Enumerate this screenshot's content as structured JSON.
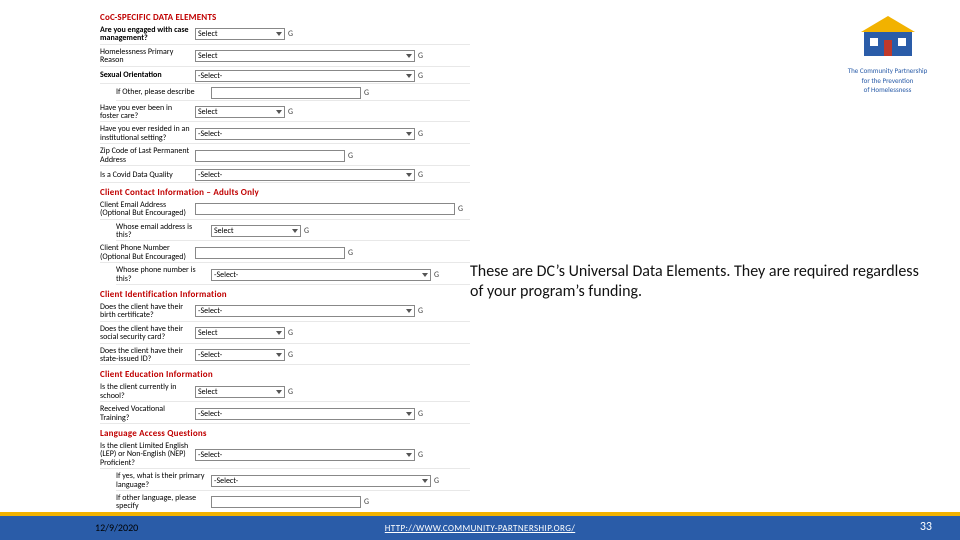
{
  "sections": {
    "coc": {
      "title": "CoC-SPECIFIC DATA ELEMENTS",
      "rows": [
        {
          "label": "Are you engaged with case management?",
          "bold": true,
          "type": "select-short",
          "value": "Select",
          "g": "G"
        },
        {
          "label": "Homelessness Primary Reason",
          "bold": false,
          "type": "select-long",
          "value": "Select",
          "g": "G"
        },
        {
          "label": "Sexual Orientation",
          "bold": true,
          "type": "select-long",
          "value": "-Select-",
          "g": "G"
        },
        {
          "label": "If Other, please describe",
          "bold": false,
          "indent": true,
          "type": "input",
          "g": "G"
        },
        {
          "label": "Have you ever been in foster care?",
          "bold": false,
          "type": "select-short",
          "value": "Select",
          "g": "G"
        },
        {
          "label": "Have you ever resided in an institutional setting?",
          "bold": false,
          "type": "select-long",
          "value": "-Select-",
          "g": "G"
        },
        {
          "label": "Zip Code of Last Permanent Address",
          "bold": false,
          "type": "input-short",
          "g": "G"
        },
        {
          "label": "Is a Covid Data Quality",
          "bold": false,
          "type": "select-long",
          "value": "-Select-",
          "g": "G"
        }
      ]
    },
    "contact": {
      "title": "Client Contact Information – Adults Only",
      "rows": [
        {
          "label": "Client Email Address (Optional But Encouraged)",
          "bold": false,
          "type": "input-long",
          "g": "G"
        },
        {
          "label": "Whose email address is this?",
          "bold": false,
          "indent": true,
          "type": "select-short",
          "value": "Select",
          "g": "G"
        },
        {
          "label": "Client Phone Number (Optional But Encouraged)",
          "bold": false,
          "type": "input-short",
          "g": "G"
        },
        {
          "label": "Whose phone number is this?",
          "bold": false,
          "indent": true,
          "type": "select-long",
          "value": "-Select-",
          "g": "G"
        }
      ]
    },
    "ident": {
      "title": "Client Identification Information",
      "rows": [
        {
          "label": "Does the client have their birth certificate?",
          "bold": false,
          "type": "select-long",
          "value": "-Select-",
          "g": "G"
        },
        {
          "label": "Does the client have their social security card?",
          "bold": false,
          "type": "select-short",
          "value": "Select",
          "g": "G"
        },
        {
          "label": "Does the client have their state-issued ID?",
          "bold": false,
          "type": "select-short",
          "value": "-Select-",
          "g": "G"
        }
      ]
    },
    "edu": {
      "title": "Client Education Information",
      "rows": [
        {
          "label": "Is the client currently in school?",
          "bold": false,
          "type": "select-short",
          "value": "Select",
          "g": "G"
        },
        {
          "label": "Received Vocational Training?",
          "bold": false,
          "type": "select-long",
          "value": "-Select-",
          "g": "G"
        }
      ]
    },
    "lang": {
      "title": "Language Access Questions",
      "rows": [
        {
          "label": "Is the client Limited English (LEP) or Non-English (NEP) Proficient?",
          "bold": false,
          "type": "select-long",
          "value": "-Select-",
          "g": "G"
        },
        {
          "label": "If yes, what is their primary language?",
          "bold": false,
          "indent": true,
          "type": "select-long",
          "value": "-Select-",
          "g": "G"
        },
        {
          "label": "If other language, please specify",
          "bold": false,
          "indent": true,
          "type": "input-short",
          "g": "G"
        }
      ]
    }
  },
  "annotation": "These are DC’s Universal Data Elements. They are required regardless of your program’s funding.",
  "logo": {
    "line1": "The Community Partnership",
    "line2": "for the Prevention",
    "line3": "of Homelessness",
    "colors": {
      "navy": "#2a5ca8",
      "yellow": "#f2b200",
      "red": "#c0392b"
    }
  },
  "footer": {
    "date": "12/9/2020",
    "link": "HTTP://WWW.COMMUNITY-PARTNERSHIP.ORG/",
    "page": "33",
    "yellow": "#f2b200",
    "blue": "#2a5ca8"
  }
}
